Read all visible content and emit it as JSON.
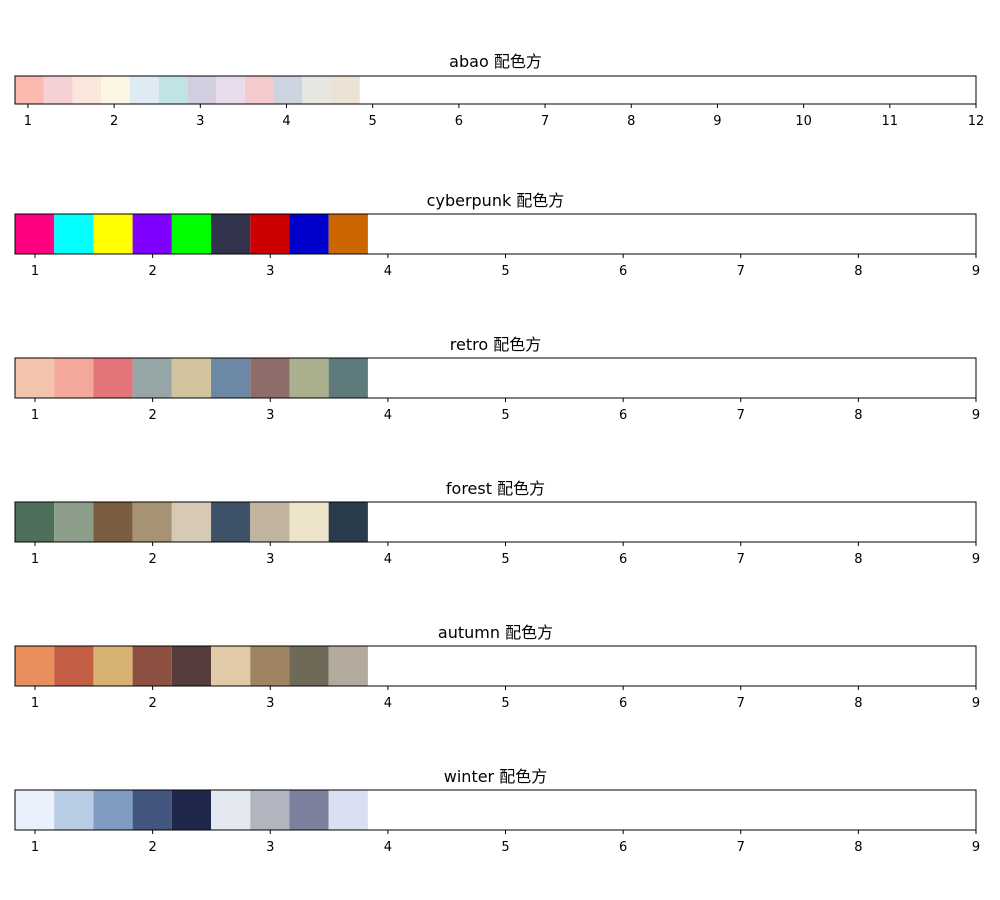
{
  "chart_data": [
    {
      "type": "bar",
      "title": "abao 配色方",
      "xlim": [
        0.85,
        12
      ],
      "xticks": [
        1,
        2,
        3,
        4,
        5,
        6,
        7,
        8,
        9,
        10,
        11,
        12
      ],
      "colors": [
        "#fdb9b0",
        "#f5d0d4",
        "#fbe6dc",
        "#fdf6e4",
        "#deeaf4",
        "#c0e4e6",
        "#d2cee0",
        "#e8dcec",
        "#f4cacc",
        "#ccd4e0",
        "#e8e6e0",
        "#ede2d6"
      ]
    },
    {
      "type": "bar",
      "title": "cyberpunk 配色方",
      "xlim": [
        0.83,
        9
      ],
      "xticks": [
        1,
        2,
        3,
        4,
        5,
        6,
        7,
        8,
        9
      ],
      "colors": [
        "#ff0080",
        "#00ffff",
        "#ffff00",
        "#8000ff",
        "#00ff00",
        "#32344e",
        "#cc0000",
        "#0000cc",
        "#cc6600"
      ]
    },
    {
      "type": "bar",
      "title": "retro 配色方",
      "xlim": [
        0.83,
        9
      ],
      "xticks": [
        1,
        2,
        3,
        4,
        5,
        6,
        7,
        8,
        9
      ],
      "colors": [
        "#f2c4ab",
        "#f4a89b",
        "#e5737a",
        "#96a6a6",
        "#d2c39f",
        "#6b88a4",
        "#8e6c6a",
        "#aab08e",
        "#5e7a7c"
      ]
    },
    {
      "type": "bar",
      "title": "forest 配色方",
      "xlim": [
        0.83,
        9
      ],
      "xticks": [
        1,
        2,
        3,
        4,
        5,
        6,
        7,
        8,
        9
      ],
      "colors": [
        "#4e705b",
        "#8c9e8a",
        "#7a5c40",
        "#a69374",
        "#d6cab4",
        "#3e526a",
        "#c0b49e",
        "#eee4cc",
        "#2a3c4c"
      ]
    },
    {
      "type": "bar",
      "title": "autumn 配色方",
      "xlim": [
        0.83,
        9
      ],
      "xticks": [
        1,
        2,
        3,
        4,
        5,
        6,
        7,
        8,
        9
      ],
      "colors": [
        "#e98f5d",
        "#c45f45",
        "#d7b170",
        "#8c4f40",
        "#573c3c",
        "#e0cba6",
        "#a08362",
        "#6f6a58",
        "#b3a99c"
      ]
    },
    {
      "type": "bar",
      "title": "winter 配色方",
      "xlim": [
        0.83,
        9
      ],
      "xticks": [
        1,
        2,
        3,
        4,
        5,
        6,
        7,
        8,
        9
      ],
      "colors": [
        "#eaf0fc",
        "#b8cde4",
        "#7f9cc2",
        "#42567f",
        "#1f284a",
        "#e4e8f0",
        "#b2b5c0",
        "#7c809c",
        "#dae0f2"
      ]
    }
  ]
}
